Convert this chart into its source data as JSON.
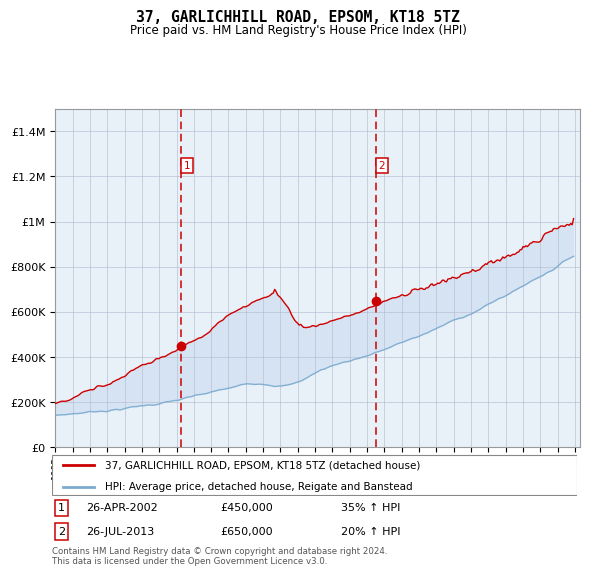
{
  "title": "37, GARLICHHILL ROAD, EPSOM, KT18 5TZ",
  "subtitle": "Price paid vs. HM Land Registry's House Price Index (HPI)",
  "red_label": "37, GARLICHHILL ROAD, EPSOM, KT18 5TZ (detached house)",
  "blue_label": "HPI: Average price, detached house, Reigate and Banstead",
  "footnote": "Contains HM Land Registry data © Crown copyright and database right 2024.\nThis data is licensed under the Open Government Licence v3.0.",
  "purchase1_date": "26-APR-2002",
  "purchase1_price": 450000,
  "purchase1_hpi": "35% ↑ HPI",
  "purchase2_date": "26-JUL-2013",
  "purchase2_price": 650000,
  "purchase2_hpi": "20% ↑ HPI",
  "ylim": [
    0,
    1500000
  ],
  "yticks": [
    0,
    200000,
    400000,
    600000,
    800000,
    1000000,
    1200000,
    1400000
  ],
  "start_year": 1995,
  "end_year": 2025,
  "plot_bg": "#e8f0f8",
  "red_color": "#cc0000",
  "blue_color": "#7aaad0",
  "vline_color": "#cc0000",
  "shade_color": "#c8daf0",
  "grid_color": "#b0b8cc"
}
